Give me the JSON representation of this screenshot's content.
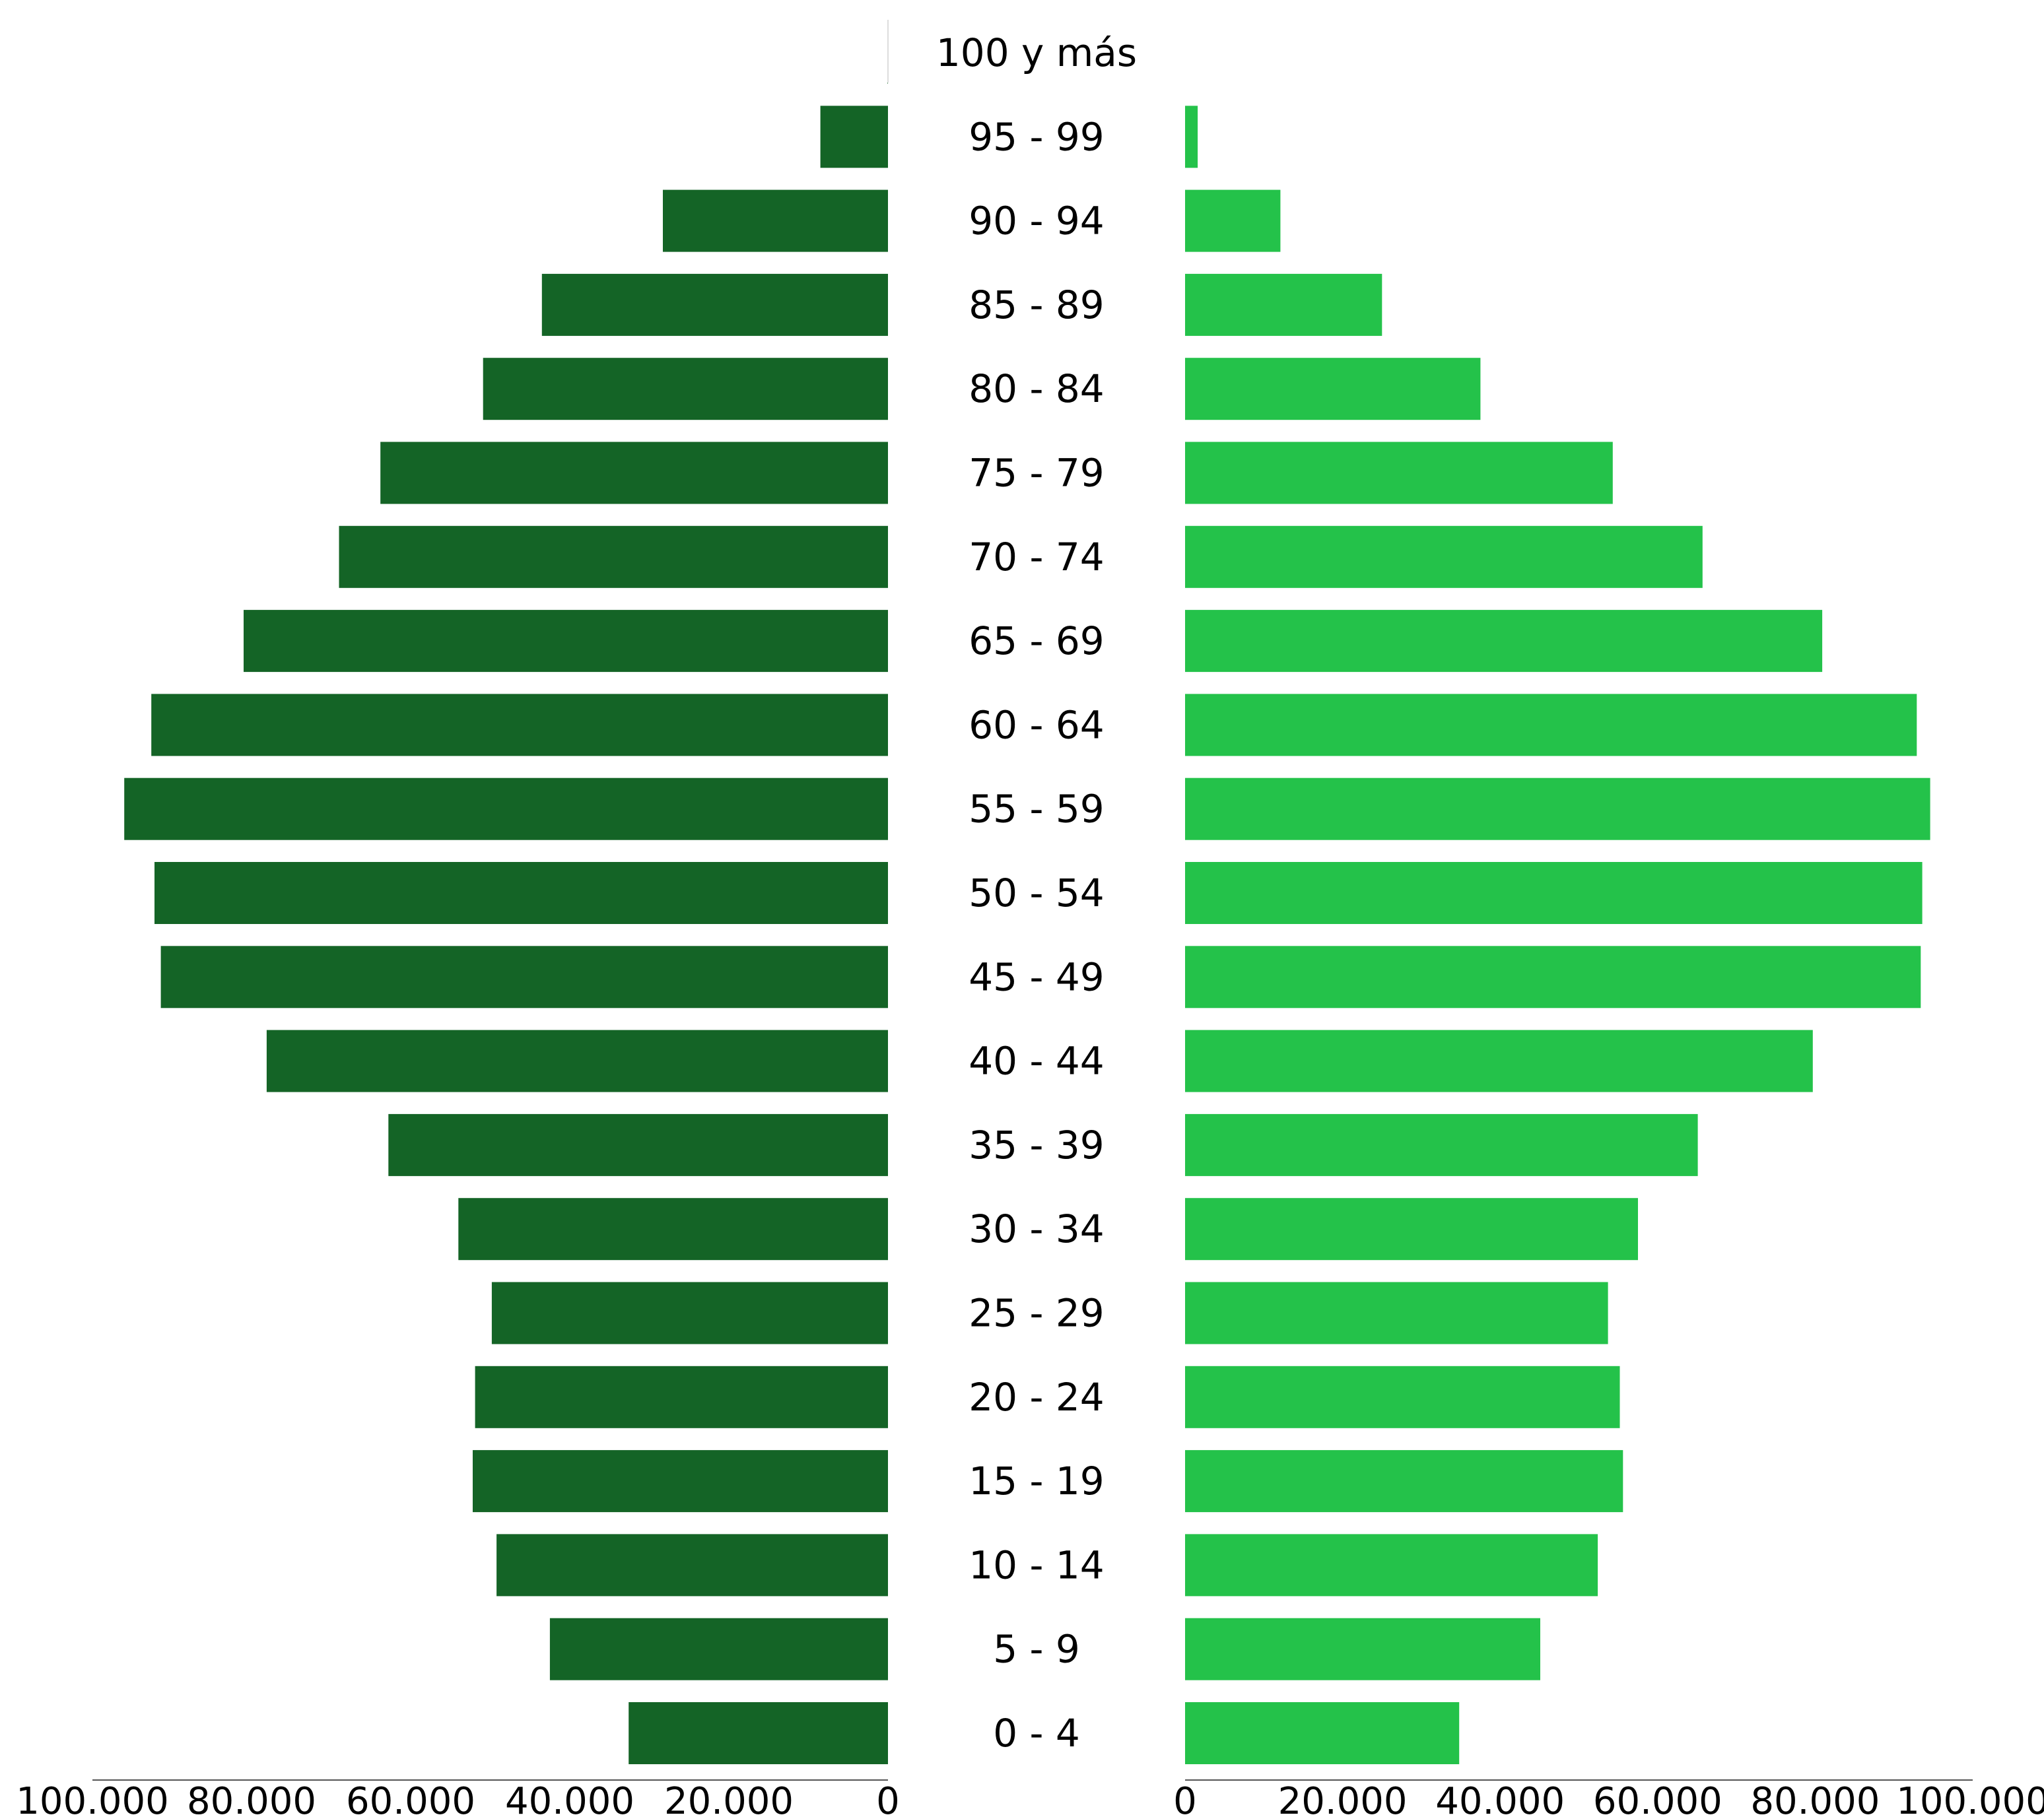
{
  "chart_data": {
    "type": "bar",
    "orientation": "horizontal-population-pyramid",
    "categories": [
      "100 y más",
      "95 - 99",
      "90 - 94",
      "85 - 89",
      "80 - 84",
      "75 - 79",
      "70 - 74",
      "65 - 69",
      "60 - 64",
      "55 - 59",
      "50 - 54",
      "45 - 49",
      "40 - 44",
      "35 - 39",
      "30 - 34",
      "25 - 29",
      "20 - 24",
      "15 - 19",
      "10 - 14",
      "5 - 9",
      "0 - 4"
    ],
    "series": [
      {
        "side": "left",
        "color": "#146426",
        "values": [
          50,
          8500,
          28300,
          43500,
          50900,
          63800,
          69000,
          81000,
          92600,
          96000,
          92200,
          91400,
          78100,
          62800,
          54000,
          49800,
          51900,
          52200,
          49200,
          42500,
          32600
        ]
      },
      {
        "side": "right",
        "color": "#24C24A",
        "values": [
          0,
          1600,
          12100,
          25000,
          37500,
          54300,
          65700,
          80900,
          92900,
          94600,
          93600,
          93400,
          79700,
          65100,
          57500,
          53700,
          55200,
          55600,
          52400,
          45100,
          34800
        ]
      }
    ],
    "left_axis": {
      "ticks": [
        "100.000",
        "80.000",
        "60.000",
        "40.000",
        "20.000",
        "0"
      ],
      "xlim": [
        0,
        100000
      ]
    },
    "right_axis": {
      "ticks": [
        "0",
        "20.000",
        "40.000",
        "60.000",
        "80.000",
        "100.000"
      ],
      "xlim": [
        0,
        100000
      ]
    },
    "title": "",
    "xlabel": "",
    "ylabel": "",
    "grid": false,
    "legend": "none"
  }
}
